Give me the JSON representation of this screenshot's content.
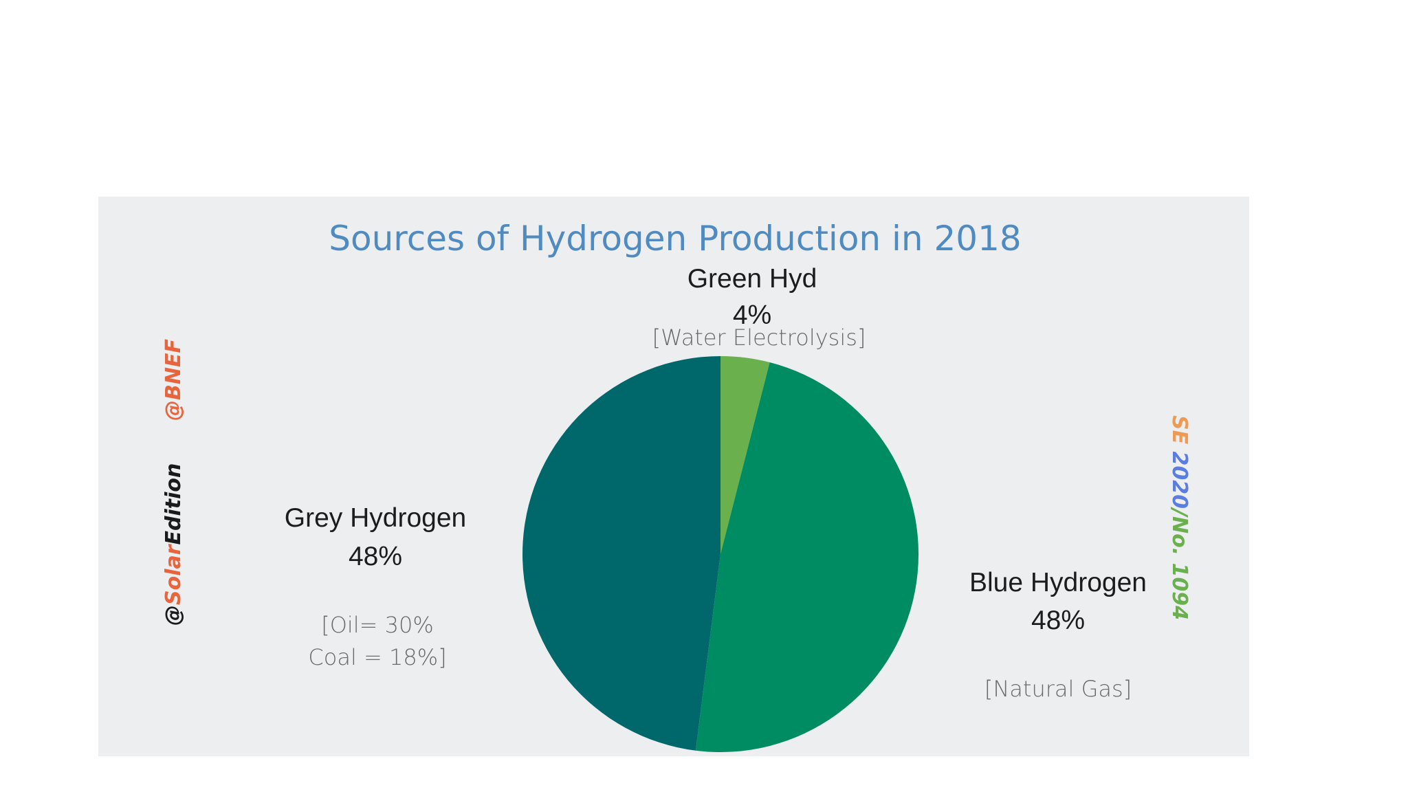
{
  "chart_data": {
    "type": "pie",
    "title": "Sources of Hydrogen Production in 2018",
    "start_angle_deg": 0,
    "direction": "clockwise",
    "slices": [
      {
        "label": "Green Hyd",
        "value": 4,
        "value_label": "4%",
        "detail": [
          "[Water Electrolysis]"
        ],
        "color": "#6ab04c"
      },
      {
        "label": "Blue Hydrogen",
        "value": 48,
        "value_label": "48%",
        "detail": [
          "[Natural Gas]"
        ],
        "color": "#008c62"
      },
      {
        "label": "Grey Hydrogen",
        "value": 48,
        "value_label": "48%",
        "detail": [
          "[Oil= 30%",
          "Coal = 18%]"
        ],
        "color": "#00676a"
      }
    ]
  },
  "watermarks": {
    "bnef": "@BNEF",
    "solar_prefix": "@",
    "solar_word": "Solar",
    "edition_word": "Edition",
    "se_prefix": "SE ",
    "se_year": "2020",
    "se_number": "/No. 1094"
  },
  "colors": {
    "panel_bg": "#eceef0",
    "title": "#4f8ac1",
    "watermark_orange": "#e8643c",
    "watermark_dark": "#1a1a1a",
    "se_orange": "#ef9a52",
    "se_blue": "#5a7de0",
    "se_green": "#6ab04c"
  }
}
